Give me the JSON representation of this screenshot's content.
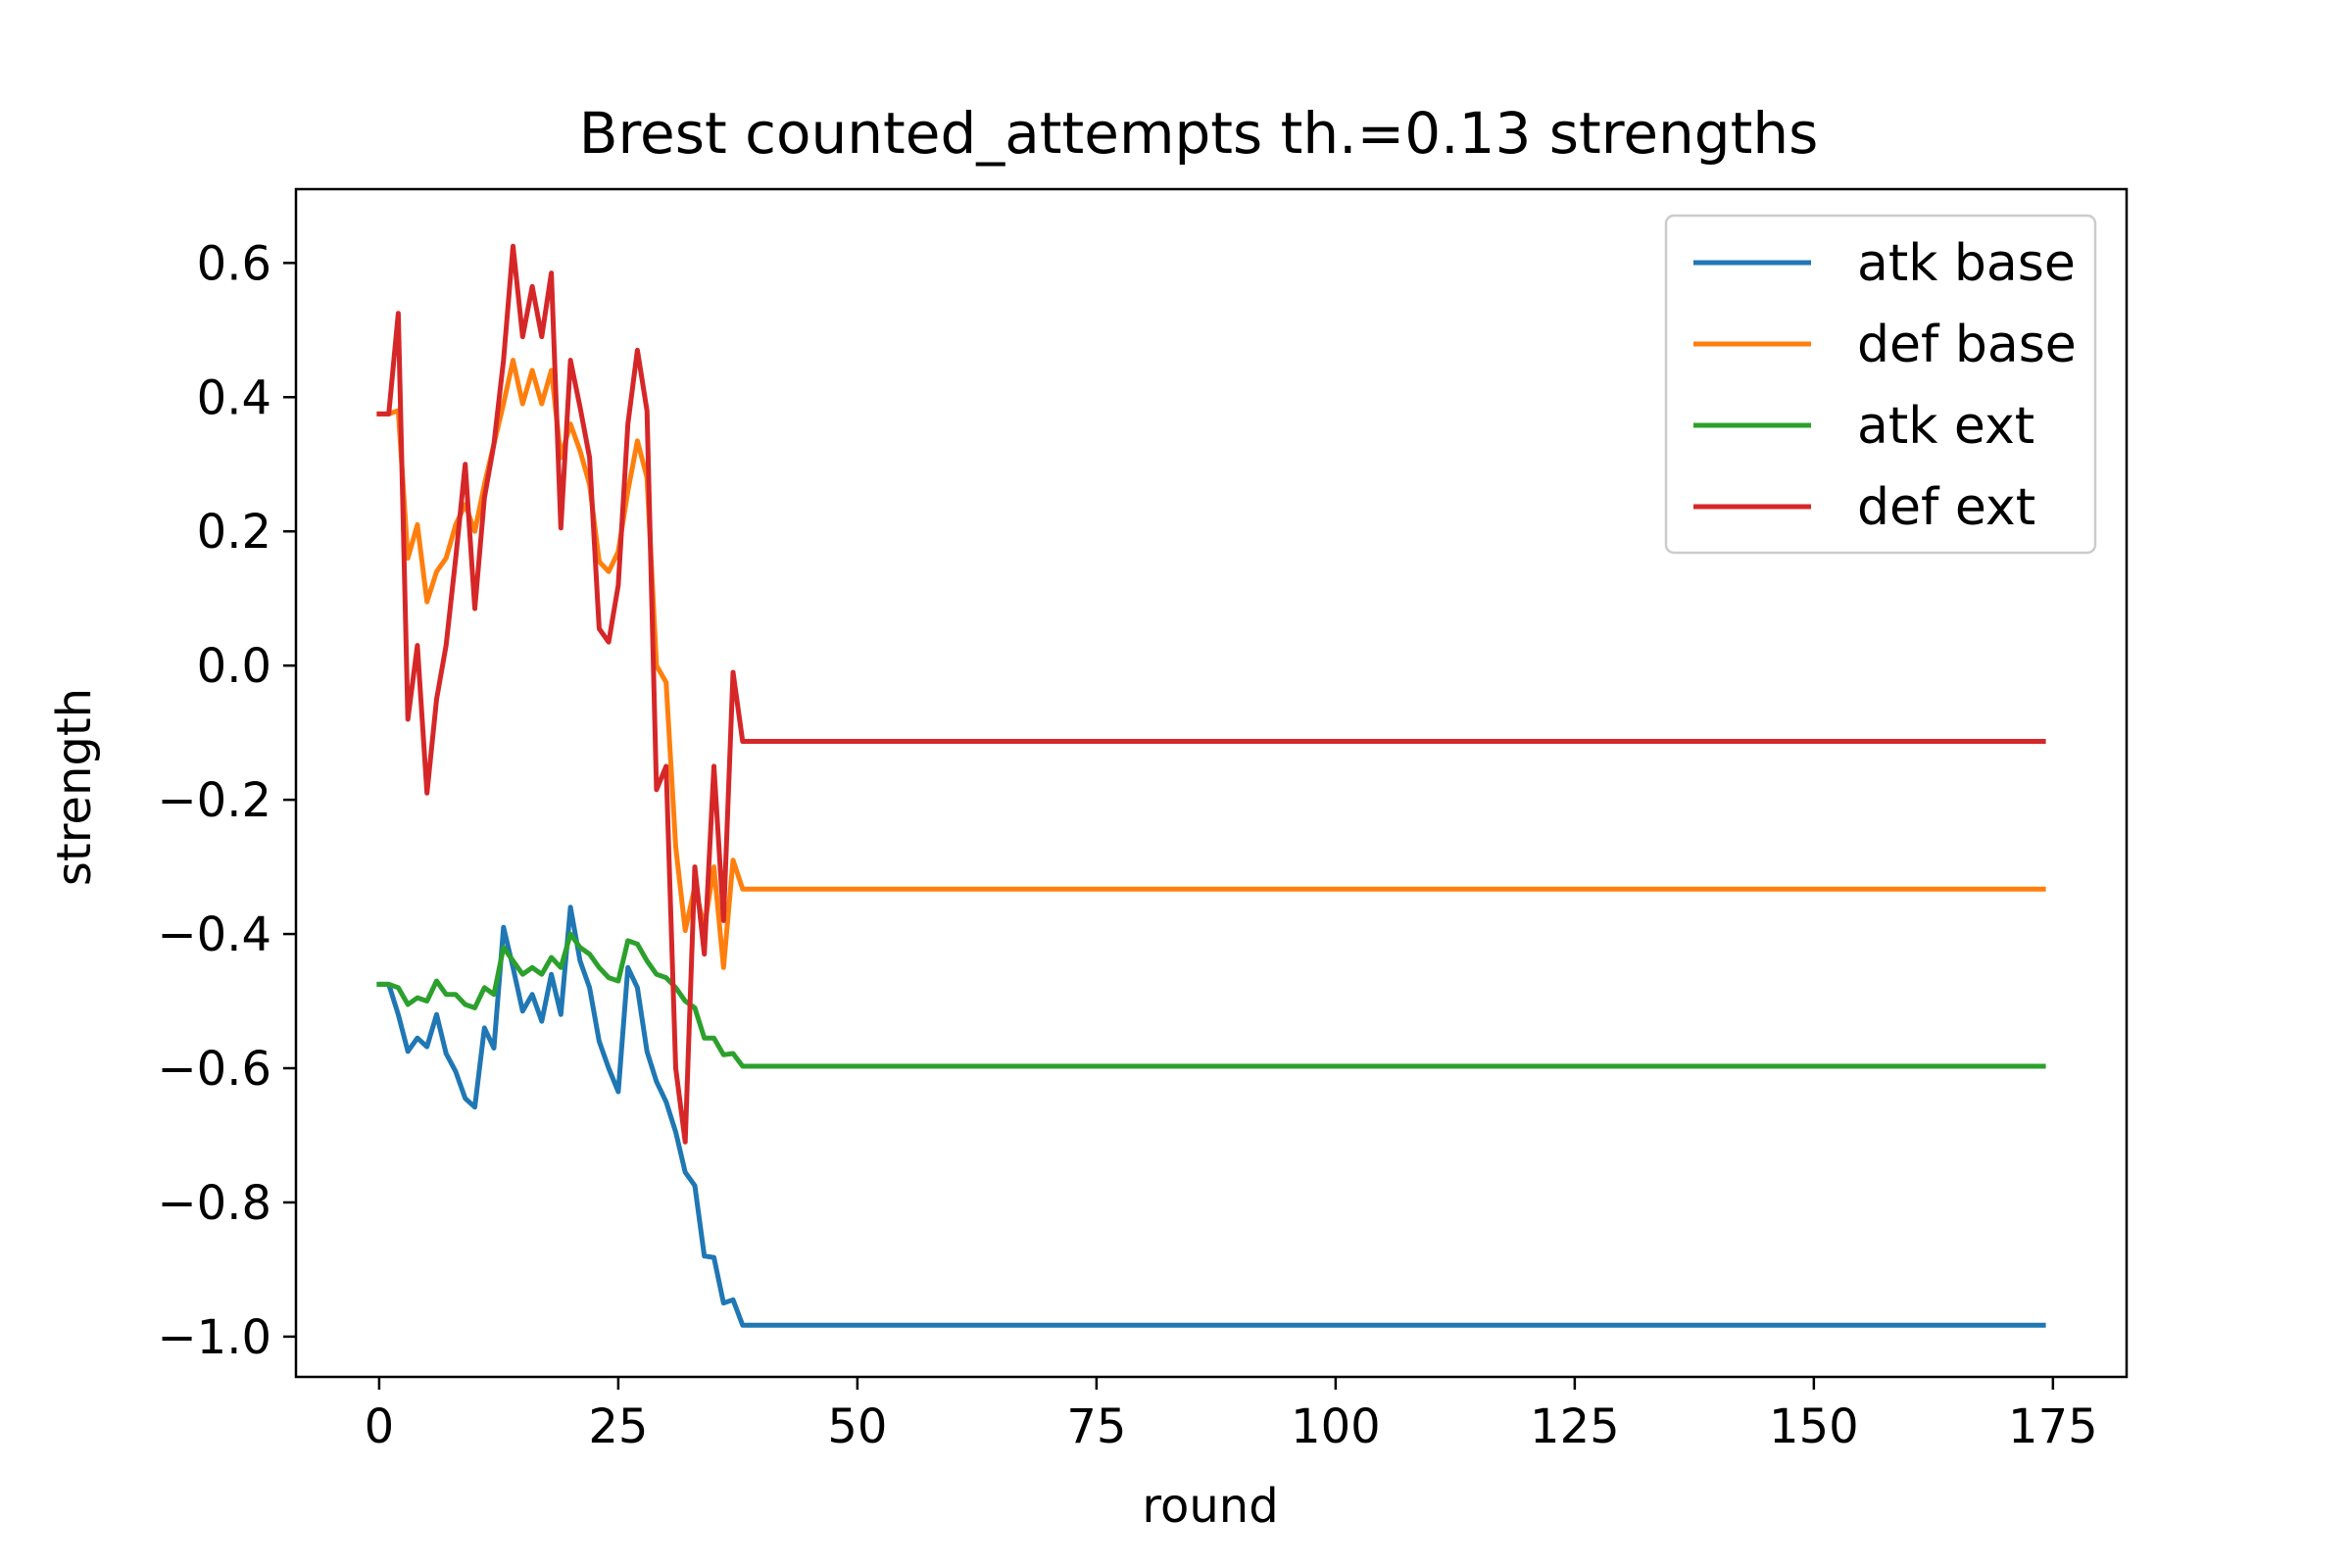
{
  "chart_data": {
    "type": "line",
    "title": "Brest counted_attempts th.=0.13 strengths",
    "xlabel": "round",
    "ylabel": "strength",
    "xlim": [
      -8.7,
      182.7
    ],
    "ylim": [
      -1.06,
      0.71
    ],
    "xticks": [
      0,
      25,
      50,
      75,
      100,
      125,
      150,
      175
    ],
    "xtick_labels": [
      "0",
      "25",
      "50",
      "75",
      "100",
      "125",
      "150",
      "175"
    ],
    "yticks": [
      0.6,
      0.4,
      0.2,
      0.0,
      -0.2,
      -0.4,
      -0.6,
      -0.8,
      -1.0
    ],
    "ytick_labels": [
      "0.6",
      "0.4",
      "0.2",
      "0.0",
      "−0.2",
      "−0.4",
      "−0.6",
      "−0.8",
      "−1.0"
    ],
    "grid": false,
    "legend_position": "upper right",
    "x_last": 174,
    "series": [
      {
        "name": "atk base",
        "color": "#1f77b4",
        "points": [
          [
            0,
            -0.475
          ],
          [
            1,
            -0.475
          ],
          [
            2,
            -0.52
          ],
          [
            3,
            -0.575
          ],
          [
            4,
            -0.555
          ],
          [
            5,
            -0.568
          ],
          [
            6,
            -0.52
          ],
          [
            7,
            -0.578
          ],
          [
            8,
            -0.605
          ],
          [
            9,
            -0.645
          ],
          [
            10,
            -0.658
          ],
          [
            11,
            -0.54
          ],
          [
            12,
            -0.57
          ],
          [
            13,
            -0.39
          ],
          [
            14,
            -0.45
          ],
          [
            15,
            -0.515
          ],
          [
            16,
            -0.49
          ],
          [
            17,
            -0.53
          ],
          [
            18,
            -0.46
          ],
          [
            19,
            -0.52
          ],
          [
            20,
            -0.36
          ],
          [
            21,
            -0.44
          ],
          [
            22,
            -0.48
          ],
          [
            23,
            -0.56
          ],
          [
            24,
            -0.6
          ],
          [
            25,
            -0.635
          ],
          [
            26,
            -0.45
          ],
          [
            27,
            -0.48
          ],
          [
            28,
            -0.575
          ],
          [
            29,
            -0.62
          ],
          [
            30,
            -0.65
          ],
          [
            31,
            -0.695
          ],
          [
            32,
            -0.755
          ],
          [
            33,
            -0.775
          ],
          [
            34,
            -0.88
          ],
          [
            35,
            -0.882
          ],
          [
            36,
            -0.95
          ],
          [
            37,
            -0.945
          ],
          [
            38,
            -0.983
          ],
          [
            174,
            -0.983
          ]
        ]
      },
      {
        "name": "def base",
        "color": "#ff7f0e",
        "points": [
          [
            0,
            0.375
          ],
          [
            1,
            0.375
          ],
          [
            2,
            0.38
          ],
          [
            3,
            0.16
          ],
          [
            4,
            0.21
          ],
          [
            5,
            0.095
          ],
          [
            6,
            0.14
          ],
          [
            7,
            0.16
          ],
          [
            8,
            0.21
          ],
          [
            9,
            0.24
          ],
          [
            10,
            0.2
          ],
          [
            11,
            0.27
          ],
          [
            12,
            0.33
          ],
          [
            13,
            0.39
          ],
          [
            14,
            0.455
          ],
          [
            15,
            0.39
          ],
          [
            16,
            0.44
          ],
          [
            17,
            0.39
          ],
          [
            18,
            0.44
          ],
          [
            19,
            0.31
          ],
          [
            20,
            0.36
          ],
          [
            21,
            0.32
          ],
          [
            22,
            0.27
          ],
          [
            23,
            0.155
          ],
          [
            24,
            0.14
          ],
          [
            25,
            0.17
          ],
          [
            26,
            0.26
          ],
          [
            27,
            0.335
          ],
          [
            28,
            0.28
          ],
          [
            29,
            0.0
          ],
          [
            30,
            -0.025
          ],
          [
            31,
            -0.27
          ],
          [
            32,
            -0.395
          ],
          [
            33,
            -0.33
          ],
          [
            34,
            -0.39
          ],
          [
            35,
            -0.3
          ],
          [
            36,
            -0.45
          ],
          [
            37,
            -0.29
          ],
          [
            38,
            -0.333
          ],
          [
            174,
            -0.333
          ]
        ]
      },
      {
        "name": "atk ext",
        "color": "#2ca02c",
        "points": [
          [
            0,
            -0.475
          ],
          [
            1,
            -0.475
          ],
          [
            2,
            -0.48
          ],
          [
            3,
            -0.505
          ],
          [
            4,
            -0.495
          ],
          [
            5,
            -0.5
          ],
          [
            6,
            -0.47
          ],
          [
            7,
            -0.49
          ],
          [
            8,
            -0.49
          ],
          [
            9,
            -0.505
          ],
          [
            10,
            -0.51
          ],
          [
            11,
            -0.48
          ],
          [
            12,
            -0.49
          ],
          [
            13,
            -0.42
          ],
          [
            14,
            -0.44
          ],
          [
            15,
            -0.46
          ],
          [
            16,
            -0.45
          ],
          [
            17,
            -0.46
          ],
          [
            18,
            -0.435
          ],
          [
            19,
            -0.45
          ],
          [
            20,
            -0.4
          ],
          [
            21,
            -0.42
          ],
          [
            22,
            -0.43
          ],
          [
            23,
            -0.45
          ],
          [
            24,
            -0.465
          ],
          [
            25,
            -0.47
          ],
          [
            26,
            -0.41
          ],
          [
            27,
            -0.415
          ],
          [
            28,
            -0.44
          ],
          [
            29,
            -0.46
          ],
          [
            30,
            -0.465
          ],
          [
            31,
            -0.48
          ],
          [
            32,
            -0.5
          ],
          [
            33,
            -0.51
          ],
          [
            34,
            -0.555
          ],
          [
            35,
            -0.555
          ],
          [
            36,
            -0.58
          ],
          [
            37,
            -0.578
          ],
          [
            38,
            -0.597
          ],
          [
            174,
            -0.597
          ]
        ]
      },
      {
        "name": "def ext",
        "color": "#d62728",
        "points": [
          [
            0,
            0.375
          ],
          [
            1,
            0.375
          ],
          [
            2,
            0.525
          ],
          [
            3,
            -0.08
          ],
          [
            4,
            0.03
          ],
          [
            5,
            -0.19
          ],
          [
            6,
            -0.05
          ],
          [
            7,
            0.03
          ],
          [
            8,
            0.16
          ],
          [
            9,
            0.3
          ],
          [
            10,
            0.085
          ],
          [
            11,
            0.25
          ],
          [
            12,
            0.33
          ],
          [
            13,
            0.455
          ],
          [
            14,
            0.625
          ],
          [
            15,
            0.49
          ],
          [
            16,
            0.565
          ],
          [
            17,
            0.49
          ],
          [
            18,
            0.585
          ],
          [
            19,
            0.205
          ],
          [
            20,
            0.455
          ],
          [
            21,
            0.385
          ],
          [
            22,
            0.31
          ],
          [
            23,
            0.055
          ],
          [
            24,
            0.035
          ],
          [
            25,
            0.12
          ],
          [
            26,
            0.36
          ],
          [
            27,
            0.47
          ],
          [
            28,
            0.38
          ],
          [
            29,
            -0.185
          ],
          [
            30,
            -0.15
          ],
          [
            31,
            -0.6
          ],
          [
            32,
            -0.71
          ],
          [
            33,
            -0.3
          ],
          [
            34,
            -0.43
          ],
          [
            35,
            -0.15
          ],
          [
            36,
            -0.38
          ],
          [
            37,
            -0.01
          ],
          [
            38,
            -0.113
          ],
          [
            174,
            -0.113
          ]
        ]
      }
    ]
  }
}
